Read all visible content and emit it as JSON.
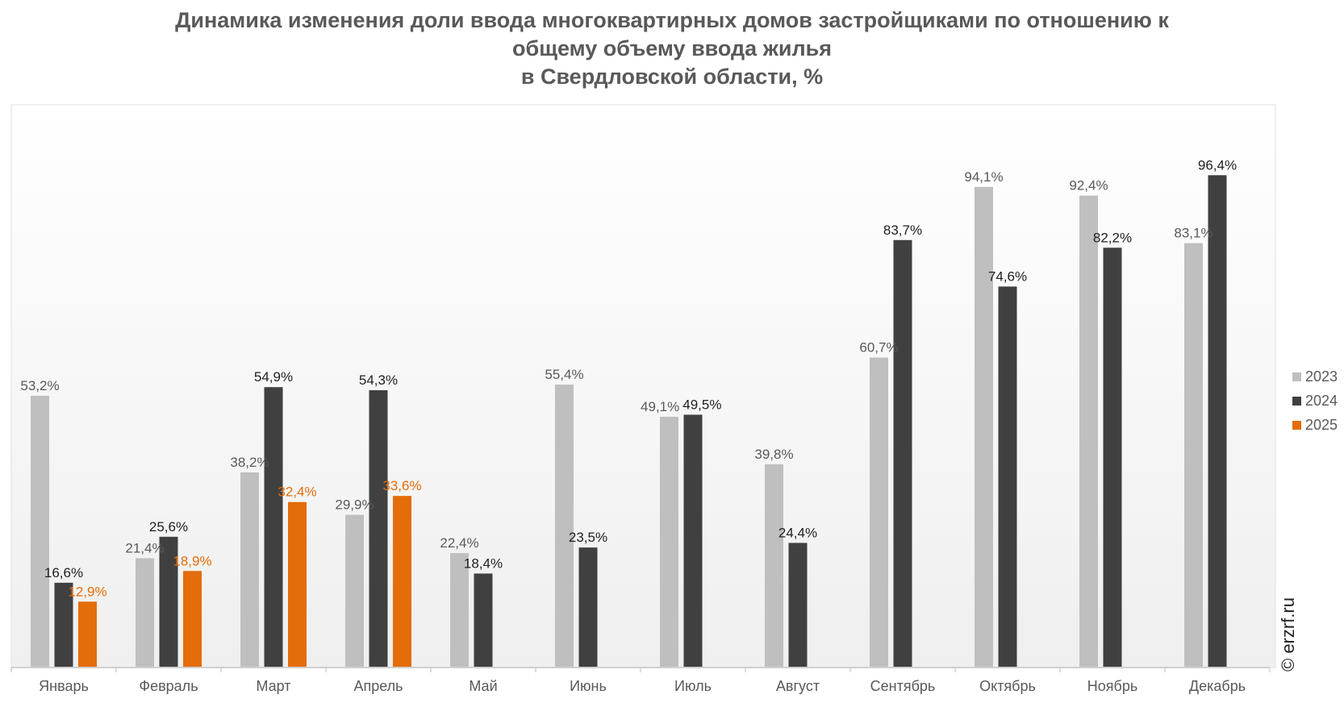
{
  "chart_data": {
    "type": "bar",
    "title": [
      "Динамика изменения доли ввода многоквартирных домов застройщиками по отношению к",
      "общему объему ввода жилья",
      "в Свердловской области, %"
    ],
    "categories": [
      "Январь",
      "Февраль",
      "Март",
      "Апрель",
      "Май",
      "Июнь",
      "Июль",
      "Август",
      "Сентябрь",
      "Октябрь",
      "Ноябрь",
      "Декабрь"
    ],
    "series": [
      {
        "name": "2023",
        "color": "#bfbfbf",
        "label_color": "#595959",
        "values": [
          53.2,
          21.4,
          38.2,
          29.9,
          22.4,
          55.4,
          49.1,
          39.8,
          60.7,
          94.1,
          92.4,
          83.1
        ]
      },
      {
        "name": "2024",
        "color": "#404040",
        "label_color": "#1f1f1f",
        "values": [
          16.6,
          25.6,
          54.9,
          54.3,
          18.4,
          23.5,
          49.5,
          24.4,
          83.7,
          74.6,
          82.2,
          96.4
        ]
      },
      {
        "name": "2025",
        "color": "#e46c0a",
        "label_color": "#e46c0a",
        "values": [
          12.9,
          18.9,
          32.4,
          33.6,
          null,
          null,
          null,
          null,
          null,
          null,
          null,
          null
        ]
      }
    ],
    "value_format": "comma-decimal-percent",
    "ylim": [
      0,
      100
    ],
    "grid": false,
    "legend": "right",
    "xlabel": "",
    "ylabel": ""
  },
  "watermark": "© erzrf.ru"
}
